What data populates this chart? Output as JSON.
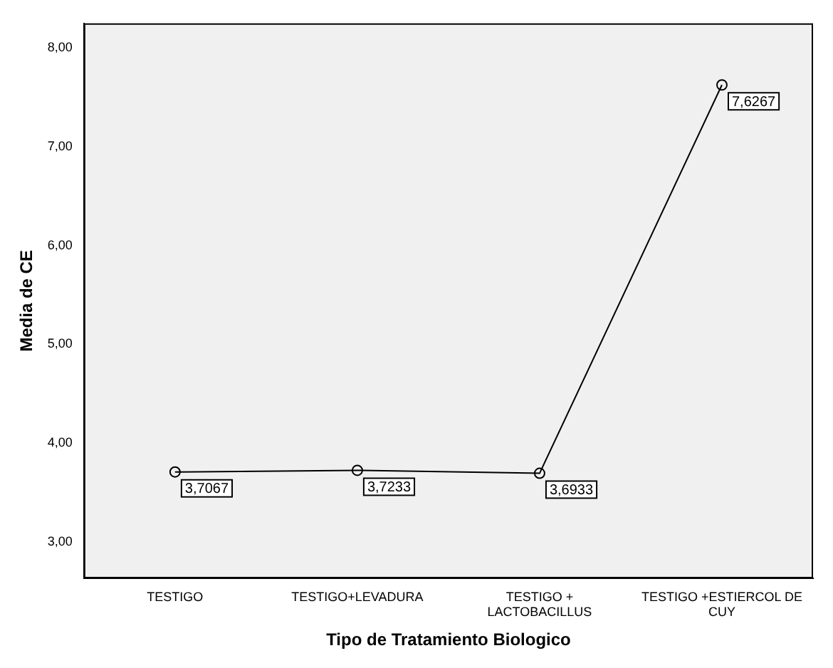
{
  "chart_data": {
    "type": "line",
    "xlabel": "Tipo de Tratamiento Biologico",
    "ylabel": "Media de CE",
    "categories": [
      "TESTIGO",
      "TESTIGO+LEVADURA",
      "TESTIGO + LACTOBACILLUS",
      "TESTIGO +ESTIERCOL DE CUY"
    ],
    "series": [
      {
        "color": "#000000",
        "values": [
          3.7067,
          3.7233,
          3.6933,
          7.6267
        ],
        "value_labels": [
          "3,7067",
          "3,7233",
          "3,6933",
          "7,6267"
        ]
      }
    ],
    "ylim": [
      2.63,
      8.25
    ],
    "yticks": [
      {
        "value": 3,
        "label": "3,00"
      },
      {
        "value": 4,
        "label": "4,00"
      },
      {
        "value": 5,
        "label": "5,00"
      },
      {
        "value": 6,
        "label": "6,00"
      },
      {
        "value": 7,
        "label": "7,00"
      },
      {
        "value": 8,
        "label": "8,00"
      }
    ],
    "marker": "circle",
    "line_style": "solid",
    "grid": false,
    "legend": false
  }
}
